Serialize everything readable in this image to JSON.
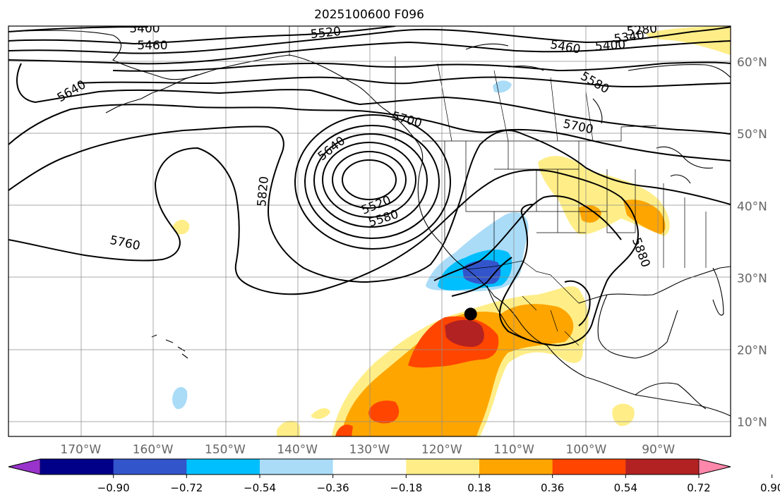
{
  "title": "2025100600 F096",
  "map": {
    "projection": "equirectangular",
    "lon_range": [
      -180,
      -80
    ],
    "lat_range": [
      8,
      65
    ],
    "lon_ticks": [
      {
        "lon": -170,
        "label": "170°W"
      },
      {
        "lon": -160,
        "label": "160°W"
      },
      {
        "lon": -150,
        "label": "150°W"
      },
      {
        "lon": -140,
        "label": "140°W"
      },
      {
        "lon": -130,
        "label": "130°W"
      },
      {
        "lon": -120,
        "label": "120°W"
      },
      {
        "lon": -110,
        "label": "110°W"
      },
      {
        "lon": -100,
        "label": "100°W"
      },
      {
        "lon": -90,
        "label": "90°W"
      }
    ],
    "lat_ticks": [
      {
        "lat": 10,
        "label": "10°N"
      },
      {
        "lat": 20,
        "label": "20°N"
      },
      {
        "lat": 30,
        "label": "30°N"
      },
      {
        "lat": 40,
        "label": "40°N"
      },
      {
        "lat": 50,
        "label": "50°N"
      },
      {
        "lat": 60,
        "label": "60°N"
      }
    ],
    "contour_labels": [
      "5400",
      "5460",
      "5520",
      "5340",
      "5280",
      "5460",
      "5400",
      "5580",
      "5700",
      "5640",
      "5700",
      "5640",
      "5820",
      "5520",
      "5580",
      "5760",
      "5880"
    ],
    "marker": {
      "lon": -116,
      "lat": 25,
      "name": "point-marker"
    }
  },
  "colorbar": {
    "ticks": [
      "−0.90",
      "−0.72",
      "−0.54",
      "−0.36",
      "−0.18",
      "0.18",
      "0.36",
      "0.54",
      "0.72",
      "0.90"
    ],
    "colors": [
      "#9933cc",
      "#000088",
      "#3355cc",
      "#00bfff",
      "#aadcf8",
      "#ffffff",
      "#ffee88",
      "#ffa500",
      "#ff4500",
      "#b22222",
      "#ff88aa"
    ]
  }
}
